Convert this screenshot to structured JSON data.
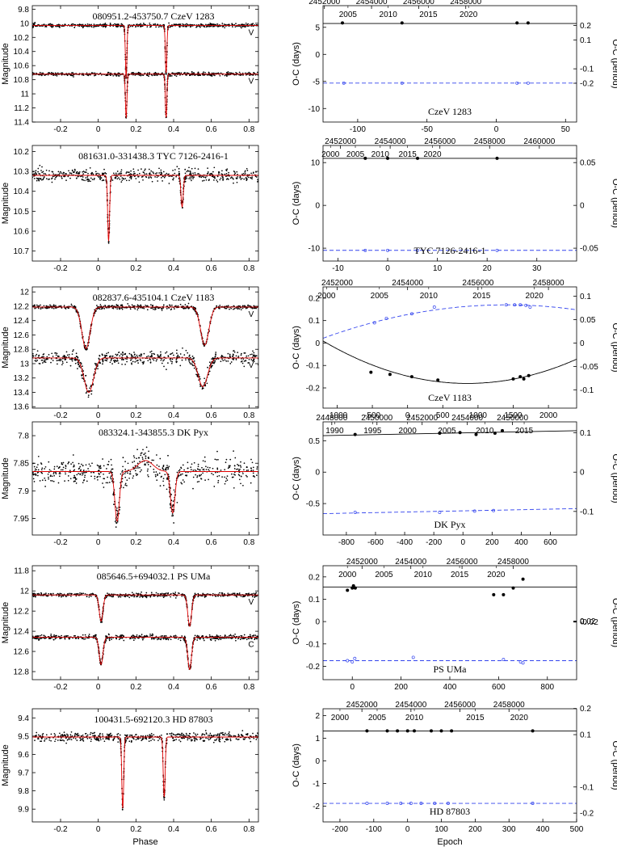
{
  "labels": {
    "phase": "Phase",
    "epoch": "Epoch",
    "magnitude": "Magnitude",
    "oc_days": "O-C (days)",
    "oc_period": "O-C (period)"
  },
  "chart_data": [
    {
      "type": "scatter",
      "panel": "light-curve",
      "row": 0,
      "title": "080951.2-453750.7     CzeV 1283",
      "xlabel": "",
      "ylabel": "Magnitude",
      "xlim": [
        -0.35,
        0.85
      ],
      "ylim": [
        11.4,
        9.75
      ],
      "y_inverted": true,
      "yticks": [
        9.8,
        10,
        10.2,
        10.4,
        10.6,
        10.8,
        11,
        11.2,
        11.4
      ],
      "xticks": [
        -0.4,
        -0.2,
        0,
        0.2,
        0.4,
        0.6,
        0.8
      ],
      "curves": [
        {
          "band": "V",
          "label": "V",
          "base": 10.03,
          "noise": 0.012,
          "minima": [
            {
              "phase": 0.148,
              "depth": 0.75,
              "width": 0.004
            },
            {
              "phase": 0.36,
              "depth": 0.68,
              "width": 0.004
            }
          ]
        },
        {
          "band": "V",
          "label": "V",
          "base": 10.72,
          "noise": 0.012,
          "minima": [
            {
              "phase": 0.148,
              "depth": 0.62,
              "width": 0.004
            },
            {
              "phase": 0.36,
              "depth": 0.62,
              "width": 0.004
            }
          ]
        }
      ]
    },
    {
      "type": "scatter",
      "panel": "oc",
      "row": 0,
      "label": "CzeV 1283",
      "xlim": [
        -125,
        58
      ],
      "ylim": [
        -12.5,
        9
      ],
      "xticks": [
        -100,
        -50,
        0,
        50
      ],
      "top_jd": [
        2452000,
        2454000,
        2456000,
        2458000
      ],
      "top_jd_pos": [
        -124,
        -90,
        -56,
        -22
      ],
      "years": [
        2005,
        2010,
        2015,
        2020
      ],
      "years_pos": [
        -107,
        -78,
        -49,
        -20
      ],
      "yticks_right": [
        0.2,
        0.1,
        -0.1,
        -0.2
      ],
      "ytick_left": [
        5,
        0,
        -5,
        -10
      ],
      "period_per_day": 0.0375,
      "primary": {
        "line_y": 5.7,
        "points": [
          [
            -111,
            5.8
          ],
          [
            -68,
            5.8
          ],
          [
            15,
            5.8
          ],
          [
            23,
            5.8
          ]
        ]
      },
      "secondary": {
        "line_y": -5.3,
        "points": [
          [
            -110,
            -5.3
          ],
          [
            -68,
            -5.3
          ],
          [
            15,
            -5.3
          ],
          [
            23,
            -5.3
          ]
        ]
      }
    },
    {
      "type": "scatter",
      "panel": "light-curve",
      "row": 1,
      "title": "081631.0-331438.3     TYC 7126-2416-1",
      "xlabel": "",
      "ylabel": "Magnitude",
      "xlim": [
        -0.35,
        0.85
      ],
      "ylim": [
        10.75,
        10.17
      ],
      "y_inverted": true,
      "yticks": [
        10.2,
        10.3,
        10.4,
        10.5,
        10.6,
        10.7
      ],
      "xticks": [
        -0.4,
        -0.2,
        0,
        0.2,
        0.4,
        0.6,
        0.8
      ],
      "curves": [
        {
          "band": "",
          "label": "",
          "base": 10.32,
          "noise": 0.015,
          "minima": [
            {
              "phase": 0.055,
              "depth": 0.33,
              "width": 0.005
            },
            {
              "phase": 0.445,
              "depth": 0.16,
              "width": 0.006
            }
          ]
        }
      ]
    },
    {
      "type": "scatter",
      "panel": "oc",
      "row": 1,
      "label": "TYC 7126-2416-1",
      "xlim": [
        -13,
        38
      ],
      "ylim": [
        -13,
        14
      ],
      "xticks": [
        -10,
        0,
        10,
        20,
        30
      ],
      "top_jd": [
        2452000,
        2454000,
        2456000,
        2458000,
        2460000
      ],
      "top_jd_pos": [
        -9.5,
        0.5,
        10.5,
        20.5,
        30.5
      ],
      "years": [
        2000,
        2005,
        2010,
        2015,
        2020
      ],
      "years_pos": [
        -11.5,
        -6.5,
        -1.5,
        4,
        9
      ],
      "yticks_right": [
        0.05,
        0,
        -0.05
      ],
      "ytick_left": [
        10,
        0,
        -10
      ],
      "period_per_day": 0.005,
      "primary": {
        "line_y": 11,
        "points": [
          [
            -4.5,
            11
          ],
          [
            0,
            11
          ],
          [
            6,
            11
          ],
          [
            22,
            11
          ]
        ]
      },
      "secondary": {
        "line_y": -10.5,
        "points": [
          [
            -4.5,
            -10.5
          ],
          [
            0,
            -10.5
          ],
          [
            6,
            -10.5
          ],
          [
            22,
            -10.5
          ]
        ]
      }
    },
    {
      "type": "scatter",
      "panel": "light-curve",
      "row": 2,
      "title": "082837.6-435104.1     CzeV 1183",
      "xlabel": "",
      "ylabel": "Magnitude",
      "xlim": [
        -0.35,
        0.85
      ],
      "ylim": [
        13.62,
        11.93
      ],
      "y_inverted": true,
      "yticks": [
        12,
        12.2,
        12.4,
        12.6,
        12.8,
        13,
        13.2,
        13.4,
        13.6
      ],
      "xticks": [
        -0.4,
        -0.2,
        0,
        0.2,
        0.4,
        0.6,
        0.8
      ],
      "curves": [
        {
          "band": "V",
          "label": "V",
          "base": 12.21,
          "noise": 0.015,
          "minima": [
            {
              "phase": -0.065,
              "depth": 0.58,
              "width": 0.022
            },
            {
              "phase": 0.565,
              "depth": 0.53,
              "width": 0.022
            }
          ]
        },
        {
          "band": "V",
          "label": "V",
          "base": 12.92,
          "noise": 0.045,
          "minima": [
            {
              "phase": -0.05,
              "depth": 0.48,
              "width": 0.025
            },
            {
              "phase": 0.555,
              "depth": 0.4,
              "width": 0.025
            }
          ]
        }
      ]
    },
    {
      "type": "scatter",
      "panel": "oc",
      "row": 2,
      "label": "CzeV 1183",
      "xlim": [
        -1200,
        2400
      ],
      "ylim": [
        -0.29,
        0.25
      ],
      "xticks": [
        -1000,
        -500,
        0,
        500,
        1000,
        1500,
        2000
      ],
      "top_jd": [
        2452000,
        2454000,
        2456000,
        2458000
      ],
      "top_jd_pos": [
        -1000,
        0,
        1000,
        2000
      ],
      "years": [
        2000,
        2005,
        2010,
        2015,
        2020
      ],
      "years_pos": [
        -1150,
        -400,
        300,
        1050,
        1800
      ],
      "yticks_right": [
        0.1,
        0.05,
        0,
        -0.05,
        -0.1
      ],
      "ytick_left": [
        0.2,
        0.1,
        0,
        -0.1,
        -0.2
      ],
      "period_per_day": 0.48,
      "primary": {
        "curve": {
          "center": 850,
          "a": -0.18,
          "b": 4.5e-08
        },
        "points": [
          [
            -520,
            -0.13
          ],
          [
            -250,
            -0.14
          ],
          [
            60,
            -0.15
          ],
          [
            430,
            -0.165
          ],
          [
            1500,
            -0.16
          ],
          [
            1600,
            -0.15
          ],
          [
            1650,
            -0.16
          ],
          [
            1720,
            -0.145
          ]
        ]
      },
      "secondary": {
        "curve": {
          "center": 1400,
          "a": 0.17,
          "b": -2.2e-08
        },
        "points": [
          [
            -470,
            0.09
          ],
          [
            -300,
            0.11
          ],
          [
            60,
            0.13
          ],
          [
            380,
            0.16
          ],
          [
            1400,
            0.17
          ],
          [
            1520,
            0.17
          ],
          [
            1600,
            0.17
          ],
          [
            1680,
            0.168
          ],
          [
            1740,
            0.16
          ]
        ]
      }
    },
    {
      "type": "scatter",
      "panel": "light-curve",
      "row": 3,
      "title": "083324.1-343855.3     DK Pyx",
      "xlabel": "",
      "ylabel": "Magnitude",
      "xlim": [
        -0.35,
        0.85
      ],
      "ylim": [
        7.98,
        7.775
      ],
      "y_inverted": true,
      "yticks": [
        7.8,
        7.85,
        7.9,
        7.95
      ],
      "xticks": [
        -0.4,
        -0.2,
        0,
        0.2,
        0.4,
        0.6,
        0.8
      ],
      "curves": [
        {
          "band": "",
          "label": "",
          "base": 7.865,
          "noise": 0.012,
          "hump": {
            "phase": 0.25,
            "height": 0.02,
            "width": 0.04
          },
          "minima": [
            {
              "phase": 0.1,
              "depth": 0.09,
              "width": 0.012
            },
            {
              "phase": 0.395,
              "depth": 0.075,
              "width": 0.012
            }
          ]
        }
      ]
    },
    {
      "type": "scatter",
      "panel": "oc",
      "row": 3,
      "label": "DK Pyx",
      "xlim": [
        -960,
        780
      ],
      "ylim": [
        -1,
        0.8
      ],
      "xticks": [
        -800,
        -600,
        -400,
        -200,
        0,
        200,
        400,
        600
      ],
      "top_jd": [
        2448000,
        2450000,
        2452000,
        2454000,
        2456000
      ],
      "top_jd_pos": [
        -900,
        -590,
        -280,
        30,
        340
      ],
      "years": [
        1990,
        1995,
        2000,
        2005,
        2010,
        2015
      ],
      "years_pos": [
        -880,
        -620,
        -380,
        -110,
        150,
        420
      ],
      "yticks_right": [
        0.1,
        0,
        -0.1
      ],
      "ytick_left": [
        0.5,
        0,
        -0.5
      ],
      "period_per_day": 0.16,
      "primary": {
        "line": [
          [
            -960,
            0.58
          ],
          [
            780,
            0.66
          ]
        ],
        "points": [
          [
            -740,
            0.6
          ],
          [
            -160,
            0.62
          ],
          [
            -20,
            0.63
          ],
          [
            90,
            0.6
          ],
          [
            220,
            0.62
          ],
          [
            270,
            0.66
          ]
        ]
      },
      "secondary": {
        "line": [
          [
            -960,
            -0.66
          ],
          [
            780,
            -0.58
          ]
        ],
        "points": [
          [
            -740,
            -0.64
          ],
          [
            -160,
            -0.64
          ],
          [
            80,
            -0.62
          ],
          [
            210,
            -0.61
          ]
        ]
      }
    },
    {
      "type": "scatter",
      "panel": "light-curve",
      "row": 4,
      "title": "085646.5+694032.1     PS UMa",
      "xlabel": "",
      "ylabel": "Magnitude",
      "xlim": [
        -0.35,
        0.85
      ],
      "ylim": [
        12.88,
        11.75
      ],
      "y_inverted": true,
      "yticks": [
        11.8,
        12,
        12.2,
        12.4,
        12.6,
        12.8
      ],
      "xticks": [
        -0.4,
        -0.2,
        0,
        0.2,
        0.4,
        0.6,
        0.8
      ],
      "curves": [
        {
          "band": "V",
          "label": "V",
          "base": 12.04,
          "noise": 0.01,
          "minima": [
            {
              "phase": 0.015,
              "depth": 0.26,
              "width": 0.01
            },
            {
              "phase": 0.485,
              "depth": 0.31,
              "width": 0.01
            }
          ]
        },
        {
          "band": "C",
          "label": "C",
          "base": 12.46,
          "noise": 0.012,
          "minima": [
            {
              "phase": 0.015,
              "depth": 0.27,
              "width": 0.01
            },
            {
              "phase": 0.485,
              "depth": 0.32,
              "width": 0.01
            }
          ]
        }
      ]
    },
    {
      "type": "scatter",
      "panel": "oc",
      "row": 4,
      "label": "PS UMa",
      "xlim": [
        -120,
        920
      ],
      "ylim": [
        -0.26,
        0.25
      ],
      "xticks": [
        0,
        200,
        400,
        600,
        800
      ],
      "top_jd": [
        2452000,
        2454000,
        2456000,
        2458000
      ],
      "top_jd_pos": [
        40,
        240,
        450,
        660
      ],
      "years": [
        2000,
        2005,
        2010,
        2015,
        2020
      ],
      "years_pos": [
        -20,
        130,
        290,
        440,
        590
      ],
      "yticks_right": [
        0.02,
        0,
        -0.02
      ],
      "ytick_left": [
        0.2,
        0.1,
        0,
        -0.1,
        -0.2
      ],
      "period_per_day": 9,
      "primary": {
        "line_y": 0.155,
        "points": [
          [
            -20,
            0.14
          ],
          [
            0,
            0.15
          ],
          [
            5,
            0.16
          ],
          [
            12,
            0.15
          ],
          [
            620,
            0.12
          ],
          [
            660,
            0.15
          ],
          [
            700,
            0.19
          ],
          [
            580,
            0.12
          ]
        ]
      },
      "secondary": {
        "line_y": -0.175,
        "points": [
          [
            -20,
            -0.175
          ],
          [
            0,
            -0.18
          ],
          [
            10,
            -0.165
          ],
          [
            250,
            -0.16
          ],
          [
            620,
            -0.17
          ],
          [
            690,
            -0.18
          ],
          [
            700,
            -0.185
          ]
        ]
      }
    },
    {
      "type": "scatter",
      "panel": "light-curve",
      "row": 5,
      "title": "100431.5-692120.3     HD 87803",
      "xlabel": "Phase",
      "ylabel": "Magnitude",
      "xlim": [
        -0.35,
        0.85
      ],
      "ylim": [
        9.97,
        9.35
      ],
      "y_inverted": true,
      "yticks": [
        9.4,
        9.5,
        9.6,
        9.7,
        9.8,
        9.9
      ],
      "xticks": [
        -0.4,
        -0.2,
        0,
        0.2,
        0.4,
        0.6,
        0.8
      ],
      "curves": [
        {
          "band": "",
          "label": "",
          "base": 9.505,
          "noise": 0.012,
          "minima": [
            {
              "phase": 0.13,
              "depth": 0.39,
              "width": 0.005
            },
            {
              "phase": 0.35,
              "depth": 0.33,
              "width": 0.005
            }
          ]
        }
      ]
    },
    {
      "type": "scatter",
      "panel": "oc",
      "row": 5,
      "label": "HD 87803",
      "xlabel": "Epoch",
      "xlim": [
        -250,
        500
      ],
      "ylim": [
        -2.7,
        2.3
      ],
      "xticks": [
        -200,
        -100,
        0,
        100,
        200,
        300,
        400,
        500
      ],
      "top_jd": [
        2452000,
        2454000,
        2456000,
        2458000
      ],
      "top_jd_pos": [
        -135,
        10,
        155,
        300
      ],
      "years": [
        2000,
        2005,
        2010,
        2015,
        2020
      ],
      "years_pos": [
        -200,
        -90,
        20,
        200,
        330
      ],
      "yticks_right": [
        0.2,
        0.1,
        -0.1,
        -0.2
      ],
      "ytick_left": [
        2,
        1,
        0,
        -1,
        -2
      ],
      "period_per_day": 0.0865,
      "primary": {
        "line_y": 1.32,
        "points": [
          [
            -120,
            1.32
          ],
          [
            -60,
            1.32
          ],
          [
            -30,
            1.32
          ],
          [
            0,
            1.32
          ],
          [
            20,
            1.32
          ],
          [
            70,
            1.32
          ],
          [
            100,
            1.32
          ],
          [
            130,
            1.32
          ],
          [
            370,
            1.32
          ]
        ]
      },
      "secondary": {
        "line_y": -1.88,
        "points": [
          [
            -120,
            -1.88
          ],
          [
            -60,
            -1.88
          ],
          [
            -20,
            -1.88
          ],
          [
            10,
            -1.88
          ],
          [
            40,
            -1.88
          ],
          [
            80,
            -1.88
          ],
          [
            120,
            -1.88
          ],
          [
            370,
            -1.88
          ]
        ]
      }
    }
  ]
}
